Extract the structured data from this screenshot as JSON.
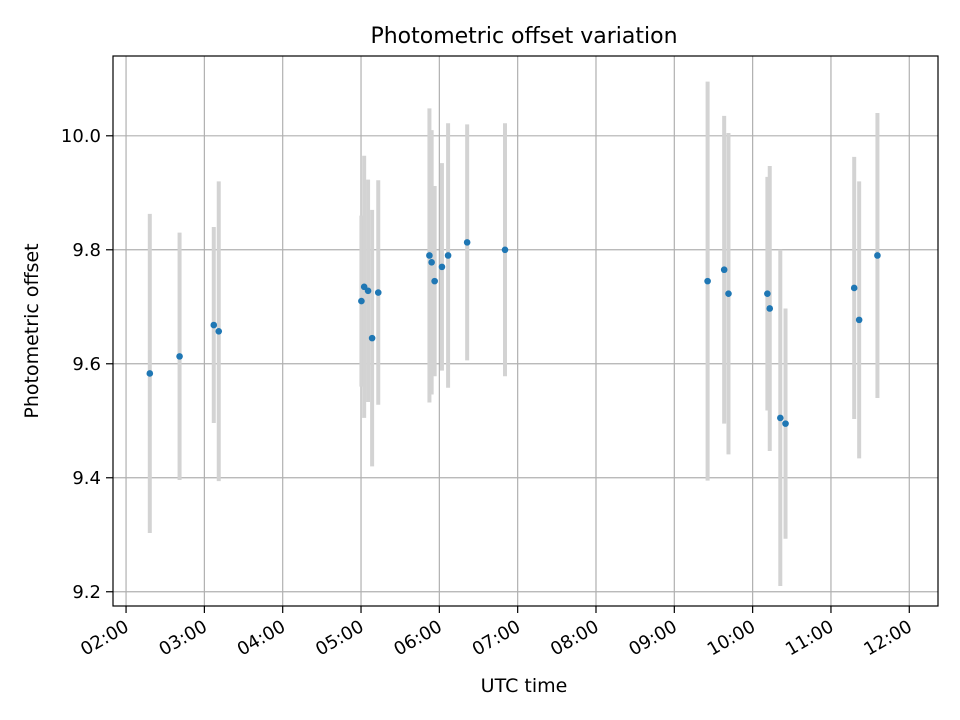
{
  "chart_data": {
    "type": "scatter",
    "title": "Photometric offset variation",
    "xlabel": "UTC time",
    "ylabel": "Photometric offset",
    "x_unit": "minutes since 00:00 UTC",
    "xlim": [
      110,
      742
    ],
    "ylim": [
      9.175,
      10.14
    ],
    "grid": true,
    "x_ticks": [
      {
        "value": 120,
        "label": "02:00"
      },
      {
        "value": 180,
        "label": "03:00"
      },
      {
        "value": 240,
        "label": "04:00"
      },
      {
        "value": 300,
        "label": "05:00"
      },
      {
        "value": 360,
        "label": "06:00"
      },
      {
        "value": 420,
        "label": "07:00"
      },
      {
        "value": 480,
        "label": "08:00"
      },
      {
        "value": 540,
        "label": "09:00"
      },
      {
        "value": 600,
        "label": "10:00"
      },
      {
        "value": 660,
        "label": "11:00"
      },
      {
        "value": 720,
        "label": "12:00"
      }
    ],
    "y_ticks": [
      {
        "value": 9.2,
        "label": "9.2"
      },
      {
        "value": 9.4,
        "label": "9.4"
      },
      {
        "value": 9.6,
        "label": "9.6"
      },
      {
        "value": 9.8,
        "label": "9.8"
      },
      {
        "value": 10.0,
        "label": "10.0"
      }
    ],
    "series": [
      {
        "name": "offset",
        "color": "#1f77b4",
        "errorbar_color": "#d3d3d3",
        "points": [
          {
            "t": 138.2,
            "y": 9.583,
            "err": 0.28
          },
          {
            "t": 161.0,
            "y": 9.613,
            "err": 0.217
          },
          {
            "t": 187.2,
            "y": 9.668,
            "err": 0.172
          },
          {
            "t": 191.0,
            "y": 9.657,
            "err": 0.263
          },
          {
            "t": 300.3,
            "y": 9.71,
            "err": 0.15
          },
          {
            "t": 302.4,
            "y": 9.735,
            "err": 0.23
          },
          {
            "t": 305.4,
            "y": 9.728,
            "err": 0.195
          },
          {
            "t": 308.5,
            "y": 9.645,
            "err": 0.225
          },
          {
            "t": 313.2,
            "y": 9.725,
            "err": 0.197
          },
          {
            "t": 352.4,
            "y": 9.79,
            "err": 0.258
          },
          {
            "t": 354.1,
            "y": 9.778,
            "err": 0.232
          },
          {
            "t": 356.4,
            "y": 9.745,
            "err": 0.167
          },
          {
            "t": 362.0,
            "y": 9.77,
            "err": 0.182
          },
          {
            "t": 366.7,
            "y": 9.79,
            "err": 0.232
          },
          {
            "t": 381.3,
            "y": 9.813,
            "err": 0.207
          },
          {
            "t": 410.3,
            "y": 9.8,
            "err": 0.222
          },
          {
            "t": 565.5,
            "y": 9.745,
            "err": 0.35
          },
          {
            "t": 578.2,
            "y": 9.765,
            "err": 0.27
          },
          {
            "t": 581.5,
            "y": 9.723,
            "err": 0.282
          },
          {
            "t": 611.3,
            "y": 9.723,
            "err": 0.205
          },
          {
            "t": 613.1,
            "y": 9.697,
            "err": 0.25
          },
          {
            "t": 621.2,
            "y": 9.505,
            "err": 0.295
          },
          {
            "t": 625.2,
            "y": 9.495,
            "err": 0.202
          },
          {
            "t": 677.8,
            "y": 9.733,
            "err": 0.23
          },
          {
            "t": 681.6,
            "y": 9.677,
            "err": 0.243
          },
          {
            "t": 695.6,
            "y": 9.79,
            "err": 0.25
          }
        ]
      }
    ]
  }
}
